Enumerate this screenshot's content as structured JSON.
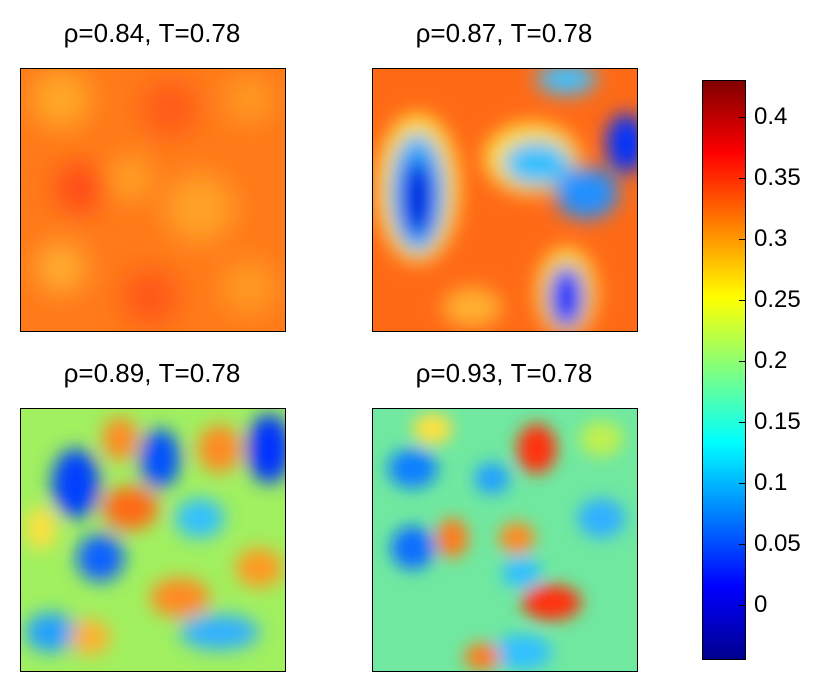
{
  "chart_data": [
    {
      "type": "heatmap",
      "title": "ρ=0.84, T=0.78",
      "grid": false
    },
    {
      "type": "heatmap",
      "title": "ρ=0.87, T=0.78",
      "grid": false
    },
    {
      "type": "heatmap",
      "title": "ρ=0.89, T=0.78",
      "grid": false
    },
    {
      "type": "heatmap",
      "title": "ρ=0.93, T=0.78",
      "grid": false
    }
  ],
  "colorbar": {
    "min": -0.045,
    "max": 0.43,
    "ticks": [
      "0",
      "0.05",
      "0.1",
      "0.15",
      "0.2",
      "0.25",
      "0.3",
      "0.35",
      "0.4"
    ],
    "tick_values": [
      0,
      0.05,
      0.1,
      0.15,
      0.2,
      0.25,
      0.3,
      0.35,
      0.4
    ],
    "colormap": "jet",
    "colors": [
      "#00008f",
      "#0000ff",
      "#00ffff",
      "#ffff00",
      "#ff0000",
      "#800000"
    ]
  }
}
